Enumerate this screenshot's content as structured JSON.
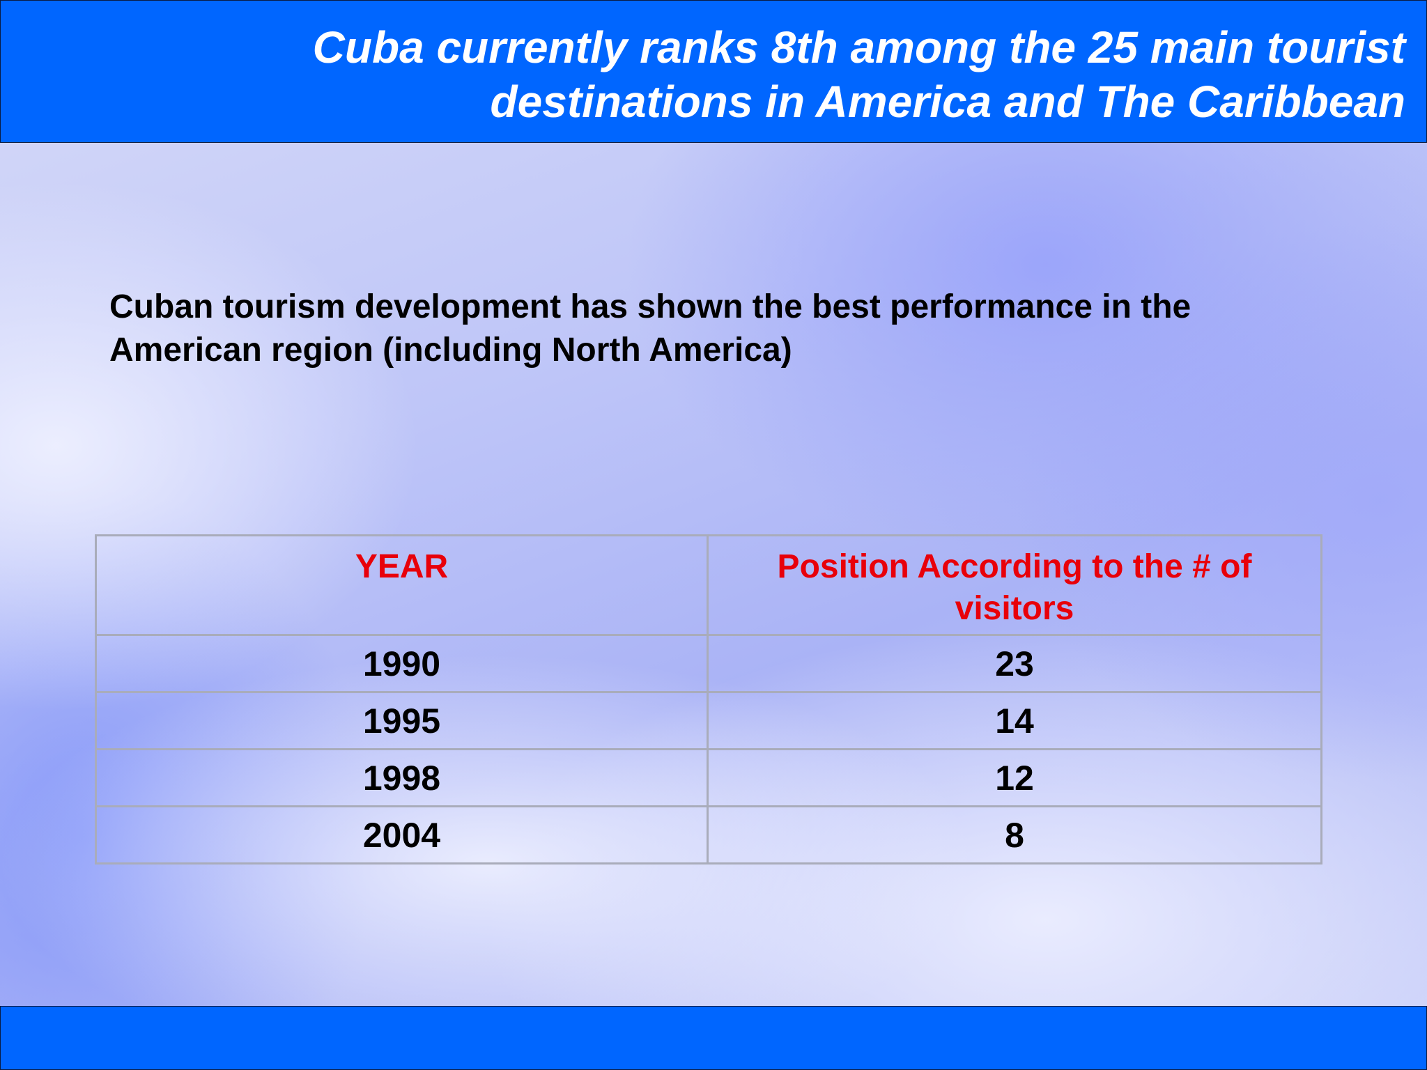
{
  "slide": {
    "title": "Cuba currently ranks 8th among the 25 main tourist destinations in America and The Caribbean",
    "subtitle": "Cuban tourism development has shown the best performance in the American region (including North America)",
    "colors": {
      "title_bar": "#0066ff",
      "footer_bar": "#0066ff",
      "header_text": "#e8000a",
      "body_text": "#000000"
    }
  },
  "table": {
    "headers": {
      "year": "YEAR",
      "position": "Position According to the # of visitors"
    },
    "rows": [
      {
        "year": "1990",
        "position": "23"
      },
      {
        "year": "1995",
        "position": "14"
      },
      {
        "year": "1998",
        "position": "12"
      },
      {
        "year": "2004",
        "position": "8"
      }
    ]
  }
}
